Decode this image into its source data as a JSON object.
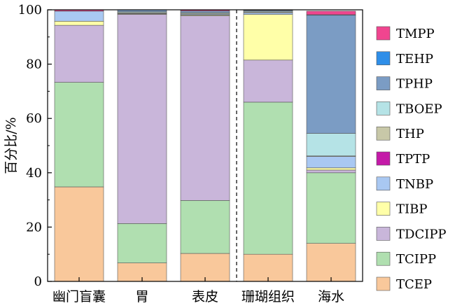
{
  "chart_data": {
    "type": "bar",
    "stacked": true,
    "categories": [
      "幽门盲囊",
      "胃",
      "表皮",
      "珊瑚组织",
      "海水"
    ],
    "ylabel": "百分比/%",
    "xlabel": "",
    "ylim": [
      0,
      100
    ],
    "yticks": [
      0,
      20,
      40,
      60,
      80,
      100
    ],
    "grid": false,
    "legend_position": "right",
    "divider_between": [
      "表皮",
      "珊瑚组织"
    ],
    "series": [
      {
        "name": "TCEP",
        "color": "#f9c89b",
        "values": [
          34.8,
          6.8,
          10.3,
          10.0,
          14.0
        ]
      },
      {
        "name": "TCIPP",
        "color": "#b0dfb0",
        "values": [
          38.5,
          14.5,
          19.5,
          56.0,
          26.0
        ]
      },
      {
        "name": "TDCIPP",
        "color": "#c9b6da",
        "values": [
          21.0,
          77.0,
          68.0,
          15.5,
          1.0
        ]
      },
      {
        "name": "TIBP",
        "color": "#ffffa8",
        "values": [
          1.5,
          0.2,
          0.3,
          16.8,
          0.8
        ]
      },
      {
        "name": "TNBP",
        "color": "#a9c8f2",
        "values": [
          3.7,
          0.2,
          0.3,
          0.6,
          4.2
        ]
      },
      {
        "name": "TPTP",
        "color": "#c41aa8",
        "values": [
          0.0,
          0.0,
          0.0,
          0.0,
          0.0
        ]
      },
      {
        "name": "THP",
        "color": "#c8c8a8",
        "values": [
          0.0,
          0.3,
          0.3,
          0.3,
          0.2
        ]
      },
      {
        "name": "TBOEP",
        "color": "#b5e3e6",
        "values": [
          0.0,
          0.3,
          0.3,
          0.3,
          8.3
        ]
      },
      {
        "name": "TPHP",
        "color": "#7b9cc4",
        "values": [
          0.0,
          0.7,
          0.6,
          0.3,
          43.5
        ]
      },
      {
        "name": "TEHP",
        "color": "#2e8ee8",
        "values": [
          0.0,
          0.0,
          0.0,
          0.1,
          0.2
        ]
      },
      {
        "name": "TMPP",
        "color": "#f0458f",
        "values": [
          0.5,
          0.0,
          0.4,
          0.1,
          1.3
        ]
      }
    ]
  }
}
